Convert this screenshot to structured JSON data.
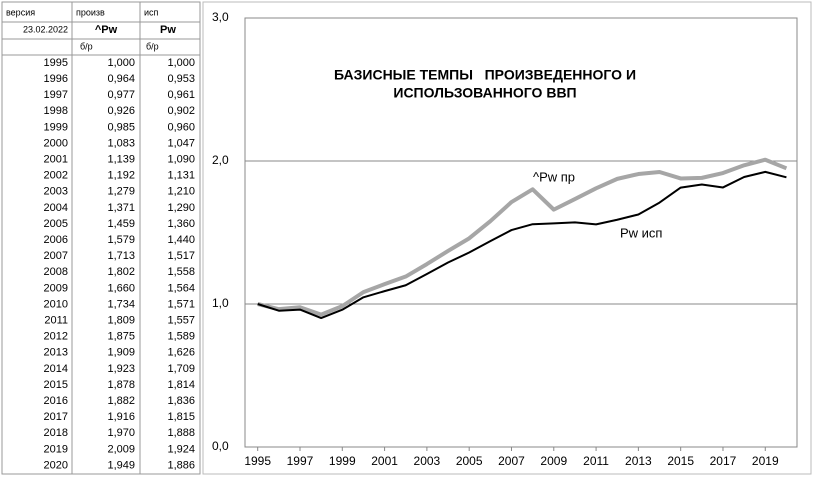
{
  "table": {
    "header": [
      [
        "версия",
        "произв",
        "исп"
      ],
      [
        "23.02.2022",
        "^Pw",
        "Pw"
      ]
    ],
    "units": [
      "б/р",
      "б/р"
    ],
    "rows": [
      [
        "1995",
        "1,000",
        "1,000"
      ],
      [
        "1996",
        "0,964",
        "0,953"
      ],
      [
        "1997",
        "0,977",
        "0,961"
      ],
      [
        "1998",
        "0,926",
        "0,902"
      ],
      [
        "1999",
        "0,985",
        "0,960"
      ],
      [
        "2000",
        "1,083",
        "1,047"
      ],
      [
        "2001",
        "1,139",
        "1,090"
      ],
      [
        "2002",
        "1,192",
        "1,131"
      ],
      [
        "2003",
        "1,279",
        "1,210"
      ],
      [
        "2004",
        "1,371",
        "1,290"
      ],
      [
        "2005",
        "1,459",
        "1,360"
      ],
      [
        "2006",
        "1,579",
        "1,440"
      ],
      [
        "2007",
        "1,713",
        "1,517"
      ],
      [
        "2008",
        "1,802",
        "1,558"
      ],
      [
        "2009",
        "1,660",
        "1,564"
      ],
      [
        "2010",
        "1,734",
        "1,571"
      ],
      [
        "2011",
        "1,809",
        "1,557"
      ],
      [
        "2012",
        "1,875",
        "1,589"
      ],
      [
        "2013",
        "1,909",
        "1,626"
      ],
      [
        "2014",
        "1,923",
        "1,709"
      ],
      [
        "2015",
        "1,878",
        "1,814"
      ],
      [
        "2016",
        "1,882",
        "1,836"
      ],
      [
        "2017",
        "1,916",
        "1,815"
      ],
      [
        "2018",
        "1,970",
        "1,888"
      ],
      [
        "2019",
        "2,009",
        "1,924"
      ],
      [
        "2020",
        "1,949",
        "1,886"
      ]
    ]
  },
  "chart_data": {
    "type": "line",
    "title": [
      "БАЗИСНЫЕ ТЕМПЫ   ПРОИЗВЕДЕННОГО И",
      "ИСПОЛЬЗОВАННОГО ВВП"
    ],
    "x": [
      1995,
      1996,
      1997,
      1998,
      1999,
      2000,
      2001,
      2002,
      2003,
      2004,
      2005,
      2006,
      2007,
      2008,
      2009,
      2010,
      2011,
      2012,
      2013,
      2014,
      2015,
      2016,
      2017,
      2018,
      2019,
      2020
    ],
    "series": [
      {
        "name": "^Pw пр",
        "color": "#a6a6a6",
        "values": [
          1.0,
          0.964,
          0.977,
          0.926,
          0.985,
          1.083,
          1.139,
          1.192,
          1.279,
          1.371,
          1.459,
          1.579,
          1.713,
          1.802,
          1.66,
          1.734,
          1.809,
          1.875,
          1.909,
          1.923,
          1.878,
          1.882,
          1.916,
          1.97,
          2.009,
          1.949
        ]
      },
      {
        "name": "Pw исп",
        "color": "#000000",
        "values": [
          1.0,
          0.953,
          0.961,
          0.902,
          0.96,
          1.047,
          1.09,
          1.131,
          1.21,
          1.29,
          1.36,
          1.44,
          1.517,
          1.558,
          1.564,
          1.571,
          1.557,
          1.589,
          1.626,
          1.709,
          1.814,
          1.836,
          1.815,
          1.888,
          1.924,
          1.886
        ]
      }
    ],
    "xlim": [
      1994.4,
      2020.5
    ],
    "xticks": [
      1995,
      1997,
      1999,
      2001,
      2003,
      2005,
      2007,
      2009,
      2011,
      2013,
      2015,
      2017,
      2019
    ],
    "ylim": [
      0,
      3
    ],
    "yticks": [
      {
        "value": 0,
        "label": "0,0"
      },
      {
        "value": 1,
        "label": "1,0"
      },
      {
        "value": 2,
        "label": "2,0"
      },
      {
        "value": 3,
        "label": "3,0"
      }
    ],
    "grid": true
  }
}
